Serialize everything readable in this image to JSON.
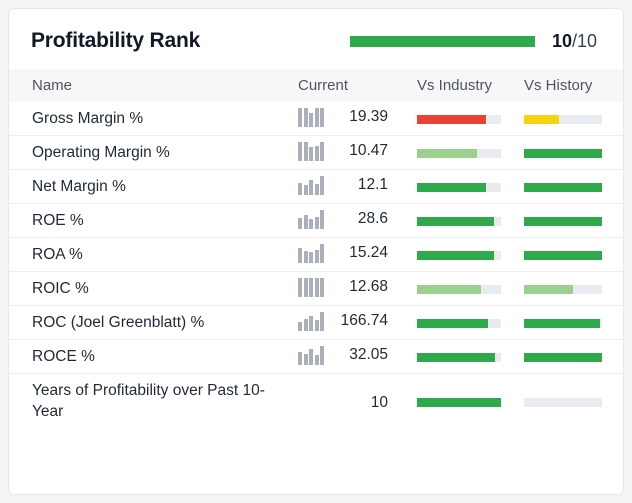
{
  "header": {
    "title": "Profitability Rank",
    "score": "10",
    "score_max": "/10",
    "score_fraction": 1.0
  },
  "columns": {
    "name": "Name",
    "current": "Current",
    "vs_industry": "Vs Industry",
    "vs_history": "Vs History"
  },
  "colors": {
    "strong_green": "#2eaa4c",
    "light_green": "#9bd08f",
    "red": "#ea4335",
    "yellow": "#f5d313",
    "track": "#e8ecf0",
    "sparkline": "#a9b0b9"
  },
  "rows": [
    {
      "name": "Gross Margin %",
      "current": "19.39",
      "industry": {
        "fraction": 0.82,
        "color": "red"
      },
      "history": {
        "fraction": 0.45,
        "color": "yellow"
      }
    },
    {
      "name": "Operating Margin %",
      "current": "10.47",
      "industry": {
        "fraction": 0.72,
        "color": "light_green"
      },
      "history": {
        "fraction": 1.0,
        "color": "strong_green"
      }
    },
    {
      "name": "Net Margin %",
      "current": "12.1",
      "industry": {
        "fraction": 0.82,
        "color": "strong_green"
      },
      "history": {
        "fraction": 1.0,
        "color": "strong_green"
      }
    },
    {
      "name": "ROE %",
      "current": "28.6",
      "industry": {
        "fraction": 0.92,
        "color": "strong_green"
      },
      "history": {
        "fraction": 1.0,
        "color": "strong_green"
      }
    },
    {
      "name": "ROA %",
      "current": "15.24",
      "industry": {
        "fraction": 0.92,
        "color": "strong_green"
      },
      "history": {
        "fraction": 1.0,
        "color": "strong_green"
      }
    },
    {
      "name": "ROIC %",
      "current": "12.68",
      "industry": {
        "fraction": 0.76,
        "color": "light_green"
      },
      "history": {
        "fraction": 0.63,
        "color": "light_green"
      }
    },
    {
      "name": "ROC (Joel Greenblatt) %",
      "current": "166.74",
      "industry": {
        "fraction": 0.84,
        "color": "strong_green"
      },
      "history": {
        "fraction": 0.97,
        "color": "strong_green"
      }
    },
    {
      "name": "ROCE %",
      "current": "32.05",
      "industry": {
        "fraction": 0.93,
        "color": "strong_green"
      },
      "history": {
        "fraction": 1.0,
        "color": "strong_green"
      }
    },
    {
      "name": "Years of Profitability over Past 10-Year",
      "current": "10",
      "industry": {
        "fraction": 1.0,
        "color": "strong_green"
      },
      "history": {
        "fraction": 0.0,
        "color": "strong_green"
      }
    }
  ]
}
